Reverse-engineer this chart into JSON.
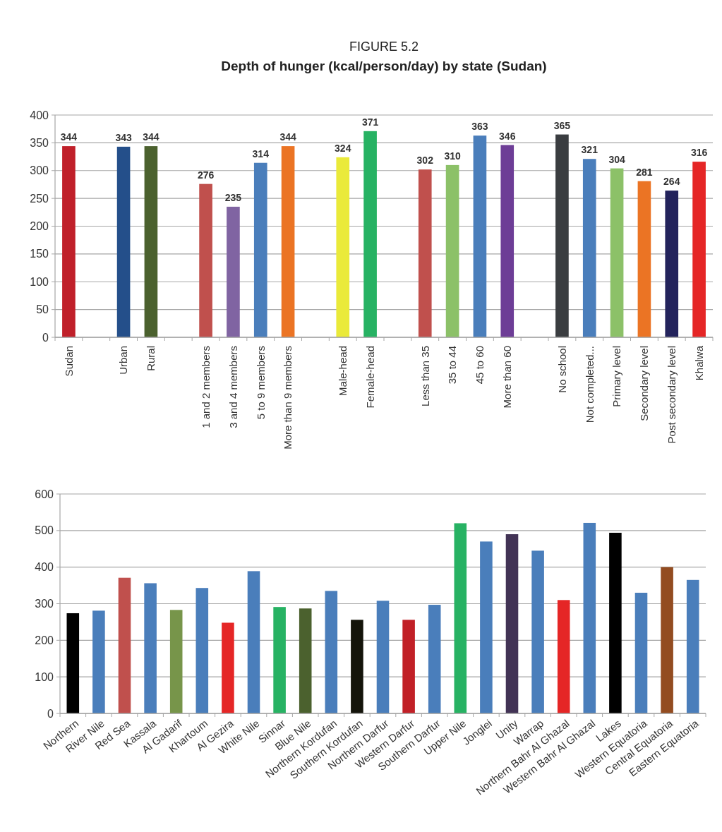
{
  "chart_data": [
    {
      "type": "bar",
      "title": "FIGURE 5.2",
      "subtitle": "Depth of hunger (kcal/person/day) by state (Sudan)",
      "categories": [
        "Sudan",
        null,
        "Urban",
        "Rural",
        null,
        "1 and 2  members",
        "3 and 4  members",
        "5 to 9 members",
        "More than 9 members",
        null,
        "Male-head",
        "Female-head",
        null,
        "Less than  35",
        "35 to 44",
        "45 to 60",
        "More than 60",
        null,
        "No school",
        "Not completed...",
        "Primary level",
        "Secondary level",
        "Post secondary level",
        "Khalwa"
      ],
      "values": [
        344,
        null,
        343,
        344,
        null,
        276,
        235,
        314,
        344,
        null,
        324,
        371,
        null,
        302,
        310,
        363,
        346,
        null,
        365,
        321,
        304,
        281,
        264,
        316
      ],
      "colors": [
        "#c0202a",
        null,
        "#244f8a",
        "#4b612e",
        null,
        "#c0504d",
        "#8064a2",
        "#4a7ebb",
        "#eb7424",
        null,
        "#eaea3a",
        "#27b263",
        null,
        "#c0504d",
        "#8cc168",
        "#4a7ebb",
        "#6d3d96",
        null,
        "#3a3d40",
        "#4a7ebb",
        "#8cc168",
        "#eb7424",
        "#23235c",
        "#e52626"
      ],
      "ylim": [
        0,
        400
      ],
      "yticks": [
        0,
        50,
        100,
        150,
        200,
        250,
        300,
        350,
        400
      ],
      "grid": "y",
      "data_labels": true
    },
    {
      "type": "bar",
      "categories": [
        "Northern",
        "River Nile",
        "Red Sea",
        "Kassala",
        "Al Gadarif",
        "Khartoum",
        "Al Gezira",
        "White Nile",
        "Sinnar",
        "Blue Nile",
        "Northern Kordufan",
        "Southern Kordufan",
        "Northern Darfur",
        "Western Darfur",
        "Southern Darfur",
        "Upper Nile",
        "Jonglei",
        "Unity",
        "Warrap",
        "Northern Bahr Al Ghazal",
        "Western Bahr Al Ghazal",
        "Lakes",
        "Western Equatoria",
        "Central Equatoria",
        "Eastern Equatoria"
      ],
      "values": [
        274,
        281,
        371,
        356,
        283,
        343,
        248,
        389,
        291,
        287,
        335,
        256,
        308,
        256,
        297,
        520,
        470,
        490,
        445,
        310,
        521,
        494,
        330,
        400,
        365
      ],
      "colors": [
        "#000000",
        "#4a7ebb",
        "#c0504d",
        "#4a7ebb",
        "#77954a",
        "#4a7ebb",
        "#e52626",
        "#4a7ebb",
        "#27b263",
        "#4b612e",
        "#4a7ebb",
        "#14140a",
        "#4a7ebb",
        "#c12027",
        "#4a7ebb",
        "#27b263",
        "#4a7ebb",
        "#423355",
        "#4a7ebb",
        "#e52626",
        "#4a7ebb",
        "#000000",
        "#4a7ebb",
        "#934c20",
        "#4a7ebb"
      ],
      "ylim": [
        0,
        600
      ],
      "yticks": [
        0,
        100,
        200,
        300,
        400,
        500,
        600
      ],
      "grid": "y"
    }
  ]
}
